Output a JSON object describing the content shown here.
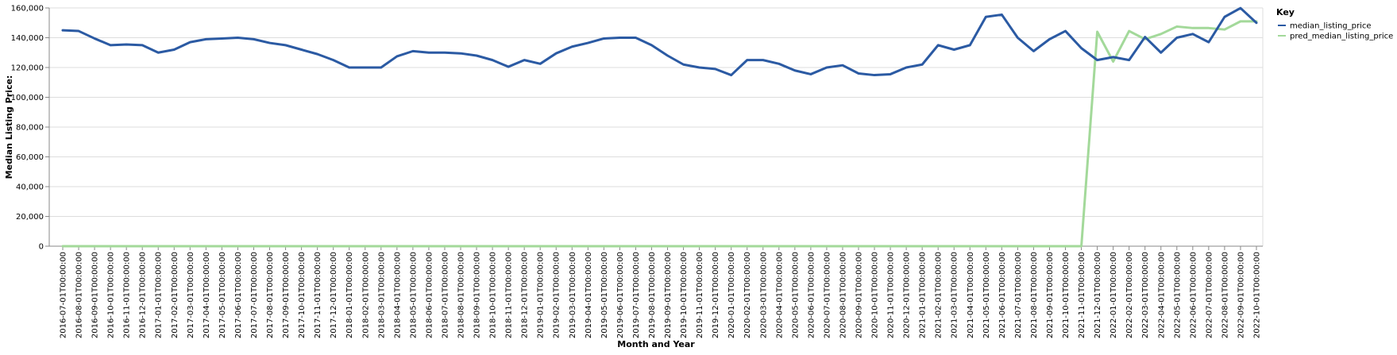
{
  "chart_data": {
    "type": "line",
    "xlabel": "Month and Year",
    "ylabel": "Median Listing Price:",
    "ylim": [
      0,
      160000
    ],
    "y_ticks": [
      0,
      20000,
      40000,
      60000,
      80000,
      100000,
      120000,
      140000,
      160000
    ],
    "grid": true,
    "legend": {
      "title": "Key",
      "placement": "right"
    },
    "x": [
      "2016-07-01T00:00:00",
      "2016-08-01T00:00:00",
      "2016-09-01T00:00:00",
      "2016-10-01T00:00:00",
      "2016-11-01T00:00:00",
      "2016-12-01T00:00:00",
      "2017-01-01T00:00:00",
      "2017-02-01T00:00:00",
      "2017-03-01T00:00:00",
      "2017-04-01T00:00:00",
      "2017-05-01T00:00:00",
      "2017-06-01T00:00:00",
      "2017-07-01T00:00:00",
      "2017-08-01T00:00:00",
      "2017-09-01T00:00:00",
      "2017-10-01T00:00:00",
      "2017-11-01T00:00:00",
      "2017-12-01T00:00:00",
      "2018-01-01T00:00:00",
      "2018-02-01T00:00:00",
      "2018-03-01T00:00:00",
      "2018-04-01T00:00:00",
      "2018-05-01T00:00:00",
      "2018-06-01T00:00:00",
      "2018-07-01T00:00:00",
      "2018-08-01T00:00:00",
      "2018-09-01T00:00:00",
      "2018-10-01T00:00:00",
      "2018-11-01T00:00:00",
      "2018-12-01T00:00:00",
      "2019-01-01T00:00:00",
      "2019-02-01T00:00:00",
      "2019-03-01T00:00:00",
      "2019-04-01T00:00:00",
      "2019-05-01T00:00:00",
      "2019-06-01T00:00:00",
      "2019-07-01T00:00:00",
      "2019-08-01T00:00:00",
      "2019-09-01T00:00:00",
      "2019-10-01T00:00:00",
      "2019-11-01T00:00:00",
      "2019-12-01T00:00:00",
      "2020-01-01T00:00:00",
      "2020-02-01T00:00:00",
      "2020-03-01T00:00:00",
      "2020-04-01T00:00:00",
      "2020-05-01T00:00:00",
      "2020-06-01T00:00:00",
      "2020-07-01T00:00:00",
      "2020-08-01T00:00:00",
      "2020-09-01T00:00:00",
      "2020-10-01T00:00:00",
      "2020-11-01T00:00:00",
      "2020-12-01T00:00:00",
      "2021-01-01T00:00:00",
      "2021-02-01T00:00:00",
      "2021-03-01T00:00:00",
      "2021-04-01T00:00:00",
      "2021-05-01T00:00:00",
      "2021-06-01T00:00:00",
      "2021-07-01T00:00:00",
      "2021-08-01T00:00:00",
      "2021-09-01T00:00:00",
      "2021-10-01T00:00:00",
      "2021-11-01T00:00:00",
      "2021-12-01T00:00:00",
      "2022-01-01T00:00:00",
      "2022-02-01T00:00:00",
      "2022-03-01T00:00:00",
      "2022-04-01T00:00:00",
      "2022-05-01T00:00:00",
      "2022-06-01T00:00:00",
      "2022-07-01T00:00:00",
      "2022-08-01T00:00:00",
      "2022-09-01T00:00:00",
      "2022-10-01T00:00:00"
    ],
    "series": [
      {
        "name": "median_listing_price",
        "color": "#2b5aa3",
        "values": [
          145000,
          144500,
          139500,
          135000,
          135500,
          135000,
          130000,
          132000,
          137000,
          139000,
          139500,
          140000,
          139000,
          136500,
          135000,
          132000,
          129000,
          125000,
          120000,
          120000,
          120000,
          127500,
          131000,
          130000,
          130000,
          129500,
          128000,
          125000,
          120500,
          125000,
          122500,
          129500,
          134000,
          136500,
          139500,
          140000,
          140000,
          135000,
          128000,
          122000,
          120000,
          119000,
          114900,
          125000,
          125000,
          122500,
          118000,
          115500,
          120000,
          121500,
          116000,
          114900,
          115500,
          120000,
          122000,
          135000,
          132000,
          135000,
          154000,
          155500,
          140000,
          131000,
          139000,
          144500,
          133000,
          125000,
          127000,
          125000,
          140500,
          130000,
          140000,
          142500,
          137000,
          154000,
          159900,
          150000
        ]
      },
      {
        "name": "pred_median_listing_price",
        "color": "#a3d99a",
        "values": [
          0,
          0,
          0,
          0,
          0,
          0,
          0,
          0,
          0,
          0,
          0,
          0,
          0,
          0,
          0,
          0,
          0,
          0,
          0,
          0,
          0,
          0,
          0,
          0,
          0,
          0,
          0,
          0,
          0,
          0,
          0,
          0,
          0,
          0,
          0,
          0,
          0,
          0,
          0,
          0,
          0,
          0,
          0,
          0,
          0,
          0,
          0,
          0,
          0,
          0,
          0,
          0,
          0,
          0,
          0,
          0,
          0,
          0,
          0,
          0,
          0,
          0,
          0,
          0,
          0,
          144000,
          124000,
          144500,
          139000,
          142500,
          147500,
          146500,
          146500,
          145500,
          151000,
          151000
        ]
      }
    ]
  }
}
